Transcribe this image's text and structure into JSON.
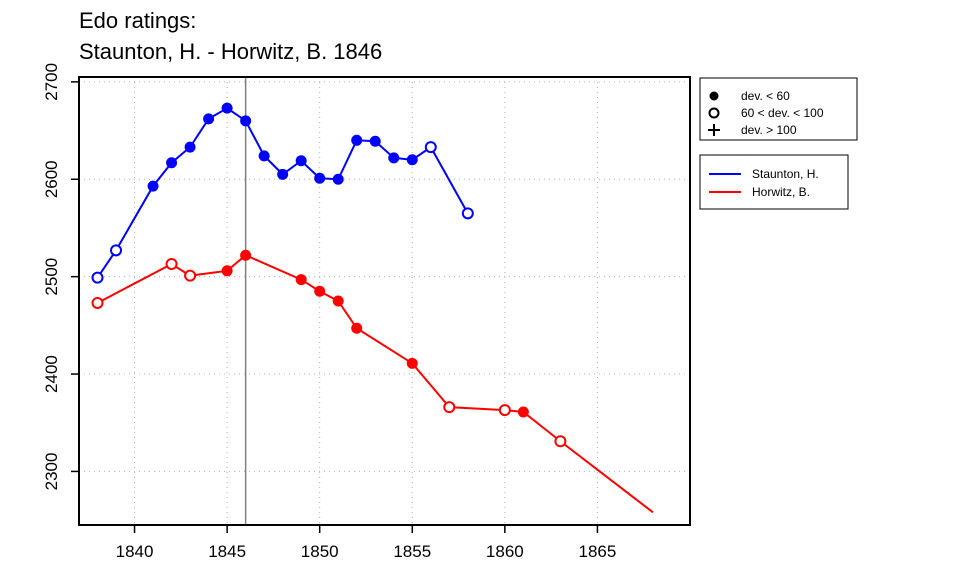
{
  "title_lines": [
    "Edo ratings:",
    "Staunton, H. - Horwitz, B. 1846"
  ],
  "chart_data": {
    "type": "line",
    "xlim": [
      1837,
      1870
    ],
    "ylim": [
      2245,
      2705
    ],
    "x_ticks": [
      1840,
      1845,
      1850,
      1855,
      1860,
      1865
    ],
    "y_ticks": [
      2300,
      2400,
      2500,
      2600,
      2700
    ],
    "grid": true,
    "vertical_line_x": 1846,
    "legend_markers": [
      {
        "marker": "filled",
        "label": "dev. < 60"
      },
      {
        "marker": "open",
        "label": "60 < dev. < 100"
      },
      {
        "marker": "plus",
        "label": "dev. > 100"
      }
    ],
    "series": [
      {
        "name": "Staunton, H.",
        "color": "#0000ff",
        "x": [
          1838,
          1839,
          1841,
          1842,
          1843,
          1844,
          1845,
          1846,
          1847,
          1848,
          1849,
          1850,
          1851,
          1852,
          1853,
          1854,
          1855,
          1856,
          1858
        ],
        "y": [
          2499,
          2527,
          2593,
          2617,
          2633,
          2662,
          2673,
          2660,
          2624,
          2605,
          2619,
          2601,
          2600,
          2640,
          2639,
          2622,
          2620,
          2633,
          2565
        ],
        "markers": [
          "open",
          "open",
          "filled",
          "filled",
          "filled",
          "filled",
          "filled",
          "filled",
          "filled",
          "filled",
          "filled",
          "filled",
          "filled",
          "filled",
          "filled",
          "filled",
          "filled",
          "open",
          "open"
        ]
      },
      {
        "name": "Horwitz, B.",
        "color": "#ff0000",
        "x": [
          1838,
          1842,
          1843,
          1845,
          1846,
          1849,
          1850,
          1851,
          1852,
          1855,
          1857,
          1860,
          1861,
          1863,
          1868
        ],
        "y": [
          2473,
          2513,
          2501,
          2506,
          2522,
          2497,
          2485,
          2475,
          2447,
          2411,
          2366,
          2363,
          2361,
          2331,
          2258
        ],
        "markers": [
          "open",
          "open",
          "open",
          "filled",
          "filled",
          "filled",
          "filled",
          "filled",
          "filled",
          "filled",
          "open",
          "open",
          "filled",
          "open",
          "none"
        ]
      }
    ]
  }
}
